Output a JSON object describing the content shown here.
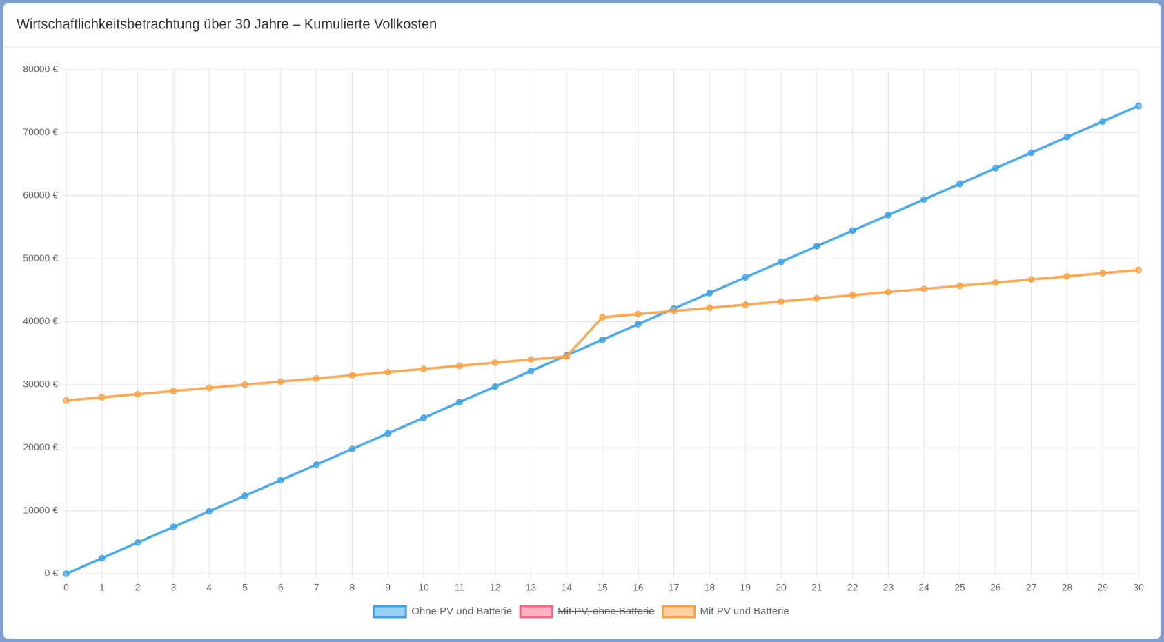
{
  "chart_data": {
    "type": "line",
    "title": "Wirtschaftlichkeitsbetrachtung über 30 Jahre – Kumulierte Vollkosten",
    "categories": [
      "0",
      "1",
      "2",
      "3",
      "4",
      "5",
      "6",
      "7",
      "8",
      "9",
      "10",
      "11",
      "12",
      "13",
      "14",
      "15",
      "16",
      "17",
      "18",
      "19",
      "20",
      "21",
      "22",
      "23",
      "24",
      "25",
      "26",
      "27",
      "28",
      "29",
      "30"
    ],
    "series": [
      {
        "name": "Ohne PV und Batterie",
        "color": "#36a2eb",
        "values": [
          0,
          2475,
          4950,
          7425,
          9900,
          12375,
          14850,
          17325,
          19800,
          22275,
          24750,
          27225,
          29700,
          32175,
          34650,
          37125,
          39600,
          42075,
          44550,
          47025,
          49500,
          51975,
          54450,
          56925,
          59400,
          61875,
          64350,
          66825,
          69300,
          71775,
          74250
        ]
      },
      {
        "name": "Mit PV, ohne Batterie",
        "color": "#ff6384",
        "hidden": true,
        "values": [
          null,
          null,
          null,
          null,
          null,
          null,
          null,
          null,
          null,
          null,
          null,
          null,
          null,
          null,
          null,
          null,
          null,
          null,
          null,
          null,
          null,
          null,
          null,
          null,
          null,
          null,
          null,
          null,
          null,
          null,
          null
        ]
      },
      {
        "name": "Mit PV und Batterie",
        "color": "#ff9f40",
        "values": [
          27500,
          28000,
          28500,
          29000,
          29500,
          30000,
          30500,
          31000,
          31500,
          32000,
          32500,
          33000,
          33500,
          34000,
          34500,
          40700,
          41200,
          41700,
          42200,
          42700,
          43200,
          43700,
          44200,
          44700,
          45200,
          45700,
          46200,
          46700,
          47200,
          47700,
          48200
        ]
      }
    ],
    "ylim": [
      0,
      80000
    ],
    "yticks": [
      {
        "value": 0,
        "label": "0 €"
      },
      {
        "value": 10000,
        "label": "10000 €"
      },
      {
        "value": 20000,
        "label": "20000 €"
      },
      {
        "value": 30000,
        "label": "30000 €"
      },
      {
        "value": 40000,
        "label": "40000 €"
      },
      {
        "value": 50000,
        "label": "50000 €"
      },
      {
        "value": 60000,
        "label": "60000 €"
      },
      {
        "value": 70000,
        "label": "70000 €"
      },
      {
        "value": 80000,
        "label": "80000 €"
      }
    ],
    "grid": true,
    "legend": "bottom"
  }
}
